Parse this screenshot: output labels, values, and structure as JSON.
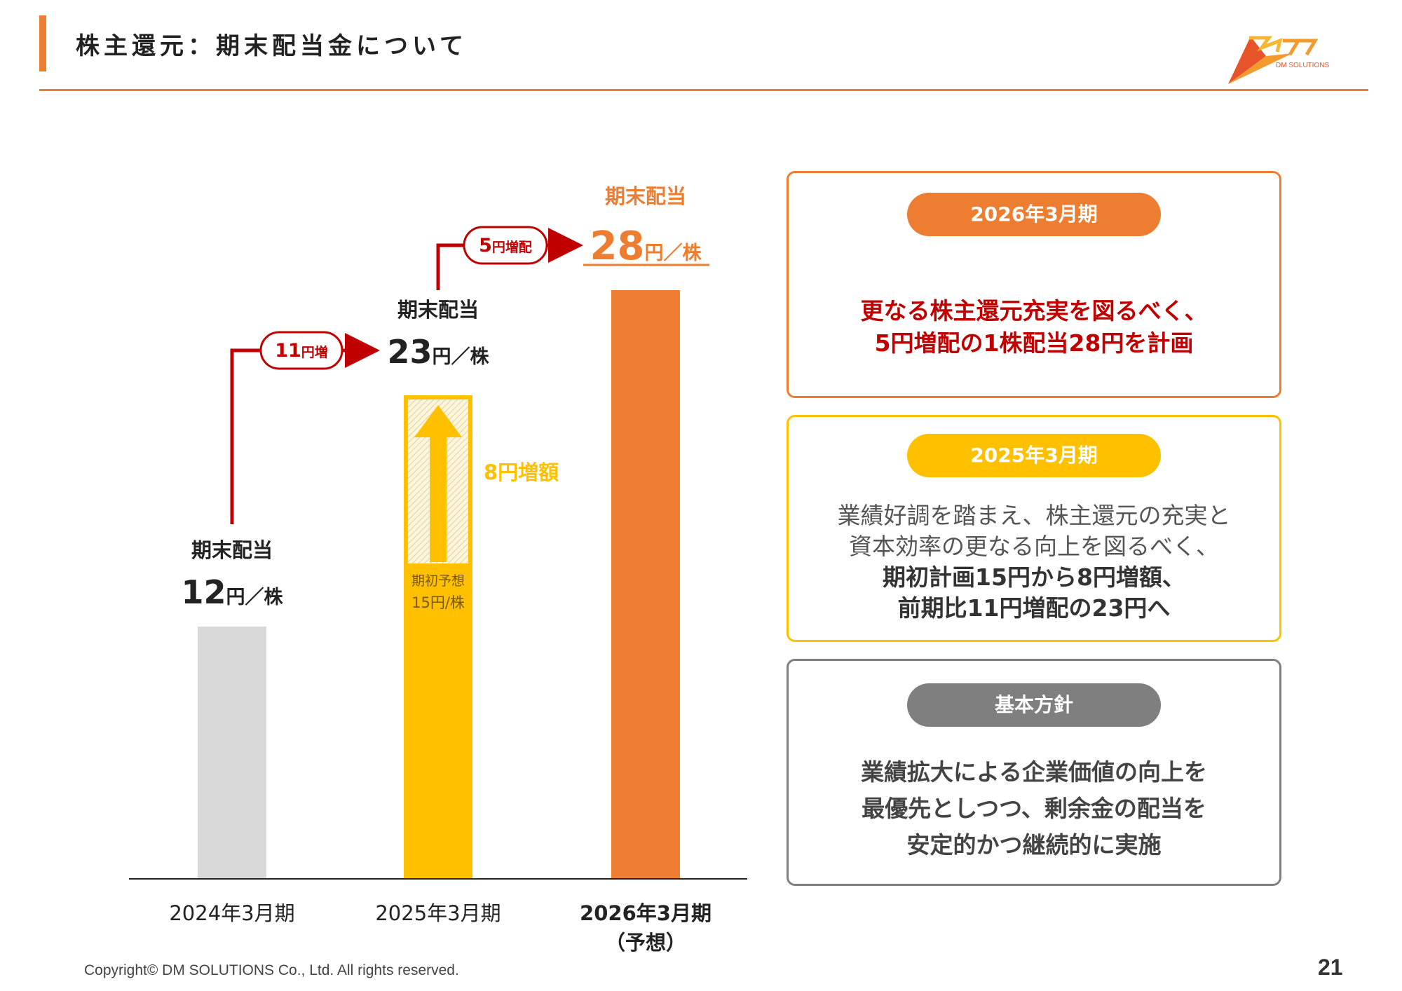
{
  "header": {
    "title": "株主還元：期末配当金について",
    "logo_text": "DM SOLUTIONS"
  },
  "colors": {
    "accent": "#ed7d31",
    "yellow": "#ffc000",
    "grey": "#d9d9d9",
    "red": "#c00000",
    "dark_grey": "#7f7f7f"
  },
  "chart_data": {
    "type": "bar",
    "categories": [
      "2024年3月期",
      "2025年3月期",
      "2026年3月期"
    ],
    "category_sublabels": [
      "",
      "",
      "（予想）"
    ],
    "values": [
      12,
      23,
      28
    ],
    "unit": "円／株",
    "bar_colors": [
      "#d9d9d9",
      "#ffc000",
      "#ed7d31"
    ],
    "ylim": [
      0,
      30
    ],
    "initial_forecast": {
      "label": "期初予想",
      "value_text": "15円/株",
      "value": 15
    },
    "increase_label": "8円増額",
    "bar_labels": [
      {
        "heading": "期末配当",
        "number": "12",
        "unit": "円／株"
      },
      {
        "heading": "期末配当",
        "number": "23",
        "unit": "円／株"
      },
      {
        "heading": "期末配当",
        "number": "28",
        "unit": "円／株"
      }
    ],
    "step_labels": [
      {
        "number": "11",
        "unit": "円増"
      },
      {
        "number": "5",
        "unit": "円増配"
      }
    ]
  },
  "boxes": [
    {
      "pill": "2026年3月期",
      "lines": [
        "更なる株主還元充実を図るべく、",
        "5円増配の1株配当28円を計画"
      ]
    },
    {
      "pill": "2025年3月期",
      "lines": [
        "業績好調を踏まえ、株主還元の充実と",
        "資本効率の更なる向上を図るべく、"
      ],
      "bold_lines": [
        "期初計画15円から8円増額、",
        "前期比11円増配の23円へ"
      ]
    },
    {
      "pill": "基本方針",
      "lines": [
        "業績拡大による企業価値の向上を",
        "最優先としつつ、剰余金の配当を",
        "安定的かつ継続的に実施"
      ]
    }
  ],
  "footer": {
    "copyright": "Copyright© DM SOLUTIONS Co., Ltd. All rights reserved.",
    "page": "21"
  }
}
